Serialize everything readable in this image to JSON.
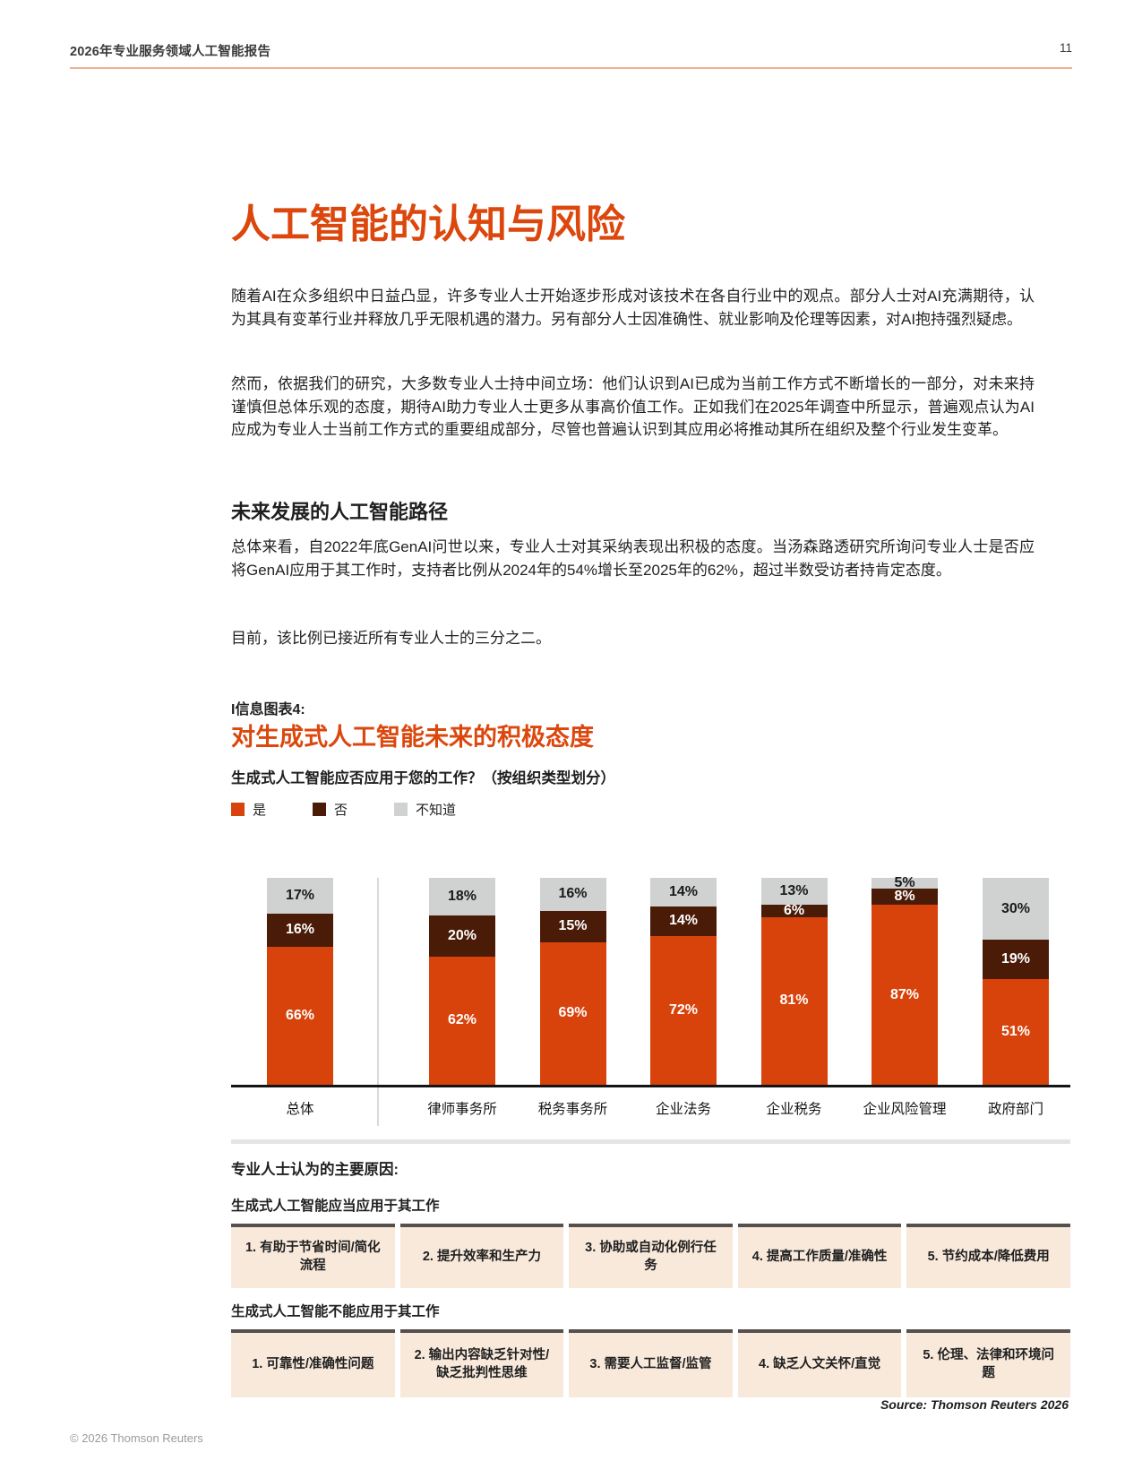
{
  "header": {
    "title": "2026年专业服务领域人工智能报告",
    "page_number": "11"
  },
  "article": {
    "title": "人工智能的认知与风险",
    "paragraph1": "随着AI在众多组织中日益凸显，许多专业人士开始逐步形成对该技术在各自行业中的观点。部分人士对AI充满期待，认为其具有变革行业并释放几乎无限机遇的潜力。另有部分人士因准确性、就业影响及伦理等因素，对AI抱持强烈疑虑。",
    "paragraph2": "然而，依据我们的研究，大多数专业人士持中间立场：他们认识到AI已成为当前工作方式不断增长的一部分，对未来持谨慎但总体乐观的态度，期待AI助力专业人士更多从事高价值工作。正如我们在2025年调查中所显示，普遍观点认为AI应成为专业人士当前工作方式的重要组成部分，尽管也普遍认识到其应用必将推动其所在组织及整个行业发生变革。",
    "section_heading": "未来发展的人工智能路径",
    "paragraph3": "总体来看，自2022年底GenAI问世以来，专业人士对其采纳表现出积极的态度。当汤森路透研究所询问专业人士是否应将GenAI应用于其工作时，支持者比例从2024年的54%增长至2025年的62%，超过半数受访者持肯定态度。",
    "paragraph4": "目前，该比例已接近所有专业人士的三分之二。"
  },
  "infographic": {
    "kicker": "I信息图表4:",
    "title": "对生成式人工智能未来的积极态度",
    "question": "生成式人工智能应否应用于您的工作？（按组织类型划分）",
    "source": "Source: Thomson Reuters 2026"
  },
  "chart_data": {
    "type": "bar",
    "stacked": true,
    "unit": "%",
    "title": "对生成式人工智能未来的积极态度",
    "categories": [
      "总体",
      "律师事务所",
      "税务事务所",
      "企业法务",
      "企业税务",
      "企业风险管理",
      "政府部门"
    ],
    "series": [
      {
        "name": "是",
        "key": "yes",
        "color": "#d8430c",
        "values": [
          66,
          62,
          69,
          72,
          81,
          87,
          51
        ]
      },
      {
        "name": "否",
        "key": "no",
        "color": "#4a1c08",
        "values": [
          16,
          20,
          15,
          14,
          6,
          8,
          19
        ]
      },
      {
        "name": "不知道",
        "key": "dontknow",
        "color": "#cfd2d1",
        "values": [
          17,
          18,
          16,
          14,
          13,
          5,
          30
        ]
      }
    ],
    "legend_position": "top-left",
    "grid": false,
    "ylim": [
      0,
      100
    ],
    "notes": "100% stacked columns; first column (总体) separated from the rest by a vertical divider"
  },
  "reasons": {
    "heading": "专业人士认为的主要原因:",
    "groups": [
      {
        "title": "生成式人工智能应当应用于其工作",
        "items": [
          "1. 有助于节省时间/简化流程",
          "2. 提升效率和生产力",
          "3. 协助或自动化例行任务",
          "4. 提高工作质量/准确性",
          "5. 节约成本/降低费用"
        ]
      },
      {
        "title": "生成式人工智能不能应用于其工作",
        "items": [
          "1. 可靠性/准确性问题",
          "2. 输出内容缺乏针对性/缺乏批判性思维",
          "3. 需要人工监督/监管",
          "4. 缺乏人文关怀/直觉",
          "5. 伦理、法律和环境问题"
        ]
      }
    ]
  },
  "footer": {
    "copyright": "© 2026 Thomson Reuters"
  },
  "colors": {
    "accent_orange": "#db470c",
    "bar_yes": "#d8430c",
    "bar_no": "#4a1c08",
    "bar_dontknow": "#cfd2d1",
    "header_rule": "#efb08c",
    "cell_bg": "#f8e9db",
    "cell_border": "#55504d"
  }
}
